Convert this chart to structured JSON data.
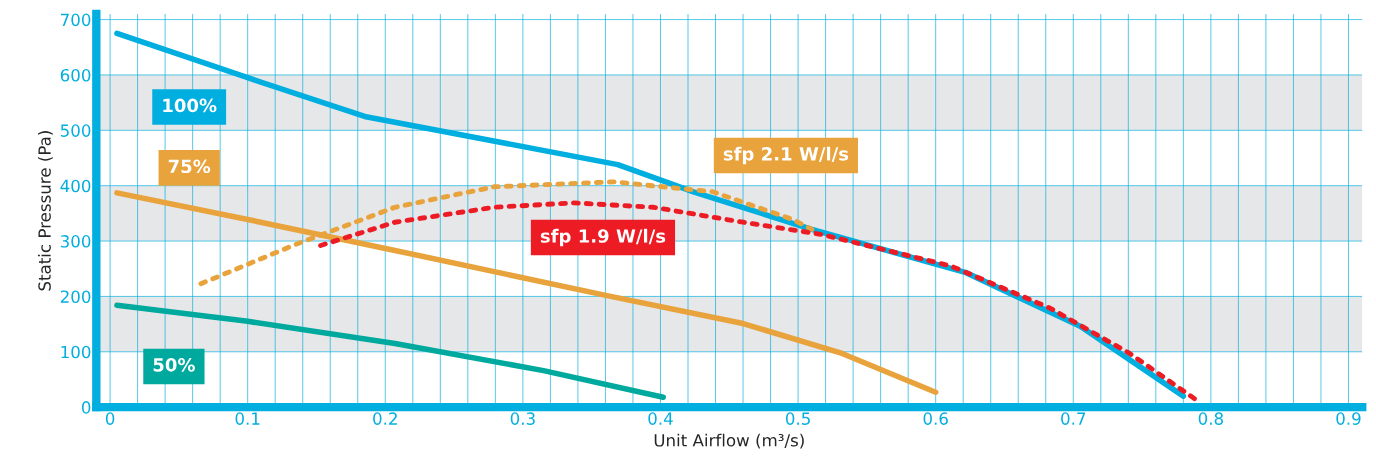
{
  "chart_data": {
    "type": "line",
    "xlabel": "Unit Airflow (m³/s)",
    "ylabel": "Static Pressure (Pa)",
    "xlim": [
      -0.01,
      0.91
    ],
    "ylim": [
      0,
      710
    ],
    "xticks": [
      0,
      0.1,
      0.2,
      0.3,
      0.4,
      0.5,
      0.6,
      0.7,
      0.8,
      0.9
    ],
    "yticks": [
      0,
      100,
      200,
      300,
      400,
      500,
      600,
      700
    ],
    "grid": true,
    "legend": false,
    "bands": [
      {
        "axis": "y",
        "from": 100,
        "to": 200,
        "color": "#e6e7e8"
      },
      {
        "axis": "y",
        "from": 300,
        "to": 400,
        "color": "#e6e7e8"
      },
      {
        "axis": "y",
        "from": 500,
        "to": 600,
        "color": "#e6e7e8"
      }
    ],
    "series": [
      {
        "name": "100%",
        "color": "#00aee0",
        "line_style": "solid",
        "x": [
          0.005,
          0.1,
          0.185,
          0.369,
          0.424,
          0.51,
          0.622,
          0.705,
          0.78
        ],
        "values": [
          675,
          595,
          525,
          438,
          389,
          321,
          243,
          146,
          20
        ]
      },
      {
        "name": "75%",
        "color": "#e8a33d",
        "line_style": "solid",
        "x": [
          0.005,
          0.1,
          0.207,
          0.362,
          0.46,
          0.532,
          0.6
        ],
        "values": [
          387,
          339,
          283,
          201,
          151,
          97,
          27
        ]
      },
      {
        "name": "50%",
        "color": "#00a99d",
        "line_style": "solid",
        "x": [
          0.005,
          0.1,
          0.207,
          0.315,
          0.402
        ],
        "values": [
          184,
          155,
          115,
          66,
          18
        ]
      },
      {
        "name": "sfp 2.1 W/l/s",
        "color": "#e8a33d",
        "line_style": "dotted",
        "x": [
          0.066,
          0.135,
          0.207,
          0.279,
          0.366,
          0.438,
          0.496,
          0.51
        ],
        "values": [
          223,
          294,
          361,
          398,
          407,
          389,
          339,
          321
        ]
      },
      {
        "name": "sfp 1.9 W/l/s",
        "color": "#ed1c24",
        "line_style": "dotted",
        "x": [
          0.153,
          0.207,
          0.279,
          0.337,
          0.395,
          0.46,
          0.517,
          0.611,
          0.683,
          0.741,
          0.79
        ],
        "values": [
          292,
          334,
          361,
          369,
          361,
          334,
          312,
          255,
          179,
          97,
          12
        ]
      }
    ]
  }
}
